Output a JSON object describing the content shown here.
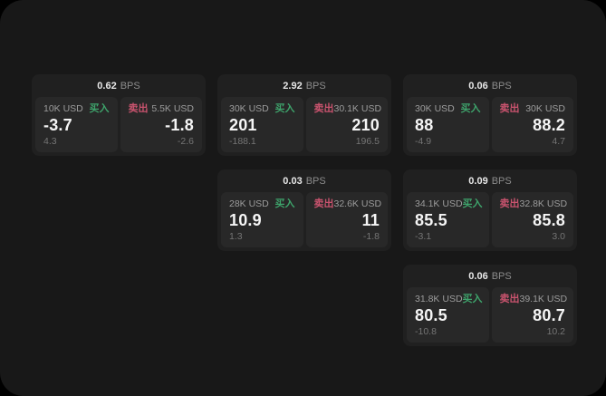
{
  "labels": {
    "buy": "买入",
    "sell": "卖出",
    "bps_unit": "BPS"
  },
  "colors": {
    "buy": "#3ea36b",
    "sell": "#c9536e"
  },
  "cards": [
    {
      "row": 1,
      "col": 1,
      "bps": "0.62",
      "buy": {
        "size": "10K USD",
        "price": "-3.7",
        "delta": "4.3"
      },
      "sell": {
        "size": "5.5K USD",
        "price": "-1.8",
        "delta": "-2.6"
      }
    },
    {
      "row": 1,
      "col": 2,
      "bps": "2.92",
      "buy": {
        "size": "30K USD",
        "price": "201",
        "delta": "-188.1"
      },
      "sell": {
        "size": "30.1K USD",
        "price": "210",
        "delta": "196.5"
      }
    },
    {
      "row": 1,
      "col": 3,
      "bps": "0.06",
      "buy": {
        "size": "30K USD",
        "price": "88",
        "delta": "-4.9"
      },
      "sell": {
        "size": "30K USD",
        "price": "88.2",
        "delta": "4.7"
      }
    },
    {
      "row": 2,
      "col": 2,
      "bps": "0.03",
      "buy": {
        "size": "28K USD",
        "price": "10.9",
        "delta": "1.3"
      },
      "sell": {
        "size": "32.6K USD",
        "price": "11",
        "delta": "-1.8"
      }
    },
    {
      "row": 2,
      "col": 3,
      "bps": "0.09",
      "buy": {
        "size": "34.1K USD",
        "price": "85.5",
        "delta": "-3.1"
      },
      "sell": {
        "size": "32.8K USD",
        "price": "85.8",
        "delta": "3.0"
      }
    },
    {
      "row": 3,
      "col": 3,
      "bps": "0.06",
      "buy": {
        "size": "31.8K USD",
        "price": "80.5",
        "delta": "-10.8"
      },
      "sell": {
        "size": "39.1K USD",
        "price": "80.7",
        "delta": "10.2"
      }
    }
  ]
}
